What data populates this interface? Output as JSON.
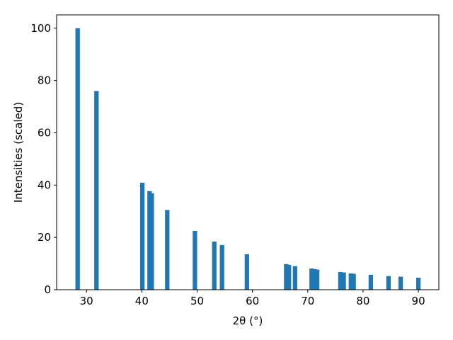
{
  "chart_data": {
    "type": "bar",
    "x_label": "2θ (°)",
    "y_label": "Intensities (scaled)",
    "x": [
      28.4,
      31.8,
      40.1,
      41.4,
      41.8,
      44.6,
      49.6,
      53.1,
      54.5,
      59.0,
      66.1,
      66.6,
      67.7,
      70.7,
      71.2,
      71.7,
      75.9,
      76.5,
      77.8,
      78.3,
      81.4,
      84.6,
      86.8,
      90.0
    ],
    "values": [
      100,
      76,
      40.9,
      37.7,
      36.9,
      30.5,
      22.5,
      18.4,
      17.1,
      13.6,
      9.8,
      9.5,
      9.0,
      8.1,
      7.9,
      7.7,
      6.8,
      6.6,
      6.2,
      6.1,
      5.7,
      5.2,
      5.0,
      4.6
    ],
    "color": "#1f77b4",
    "xlim": [
      24.6,
      93.7
    ],
    "ylim": [
      0,
      105.1
    ],
    "xticks": [
      30,
      40,
      50,
      60,
      70,
      80,
      90
    ],
    "yticks": [
      0,
      20,
      40,
      60,
      80,
      100
    ]
  }
}
